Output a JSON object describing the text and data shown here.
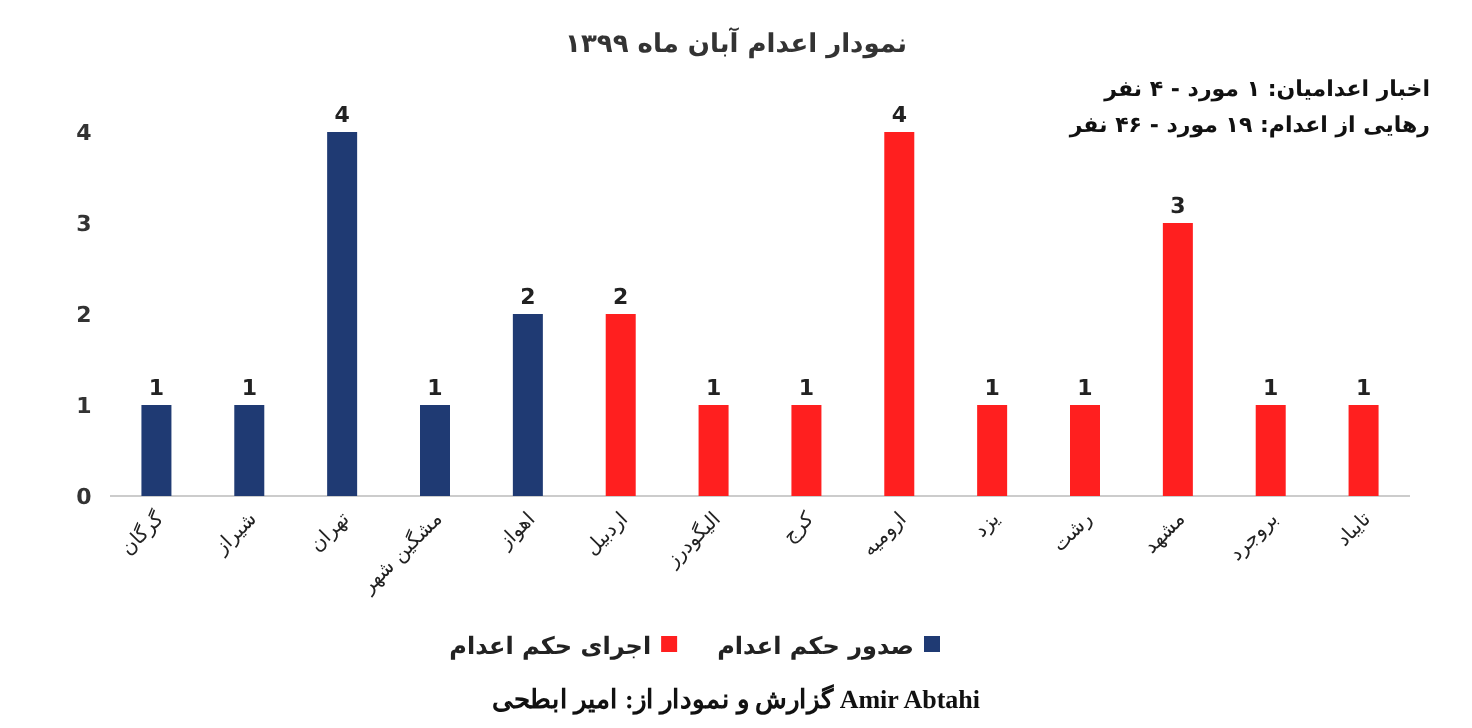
{
  "chart_data": {
    "type": "bar",
    "title": "نمودار اعدام آبان ماه ۱۳۹۹",
    "categories": [
      "گرگان",
      "شیراز",
      "تهران",
      "مشگین شهر",
      "اهواز",
      "اردبیل",
      "الیگودرز",
      "کرج",
      "ارومیه",
      "یزد",
      "رشت",
      "مشهد",
      "بروجرد",
      "تایباد"
    ],
    "series": [
      {
        "name": "صدور حکم اعدام",
        "color": "#1f3a73",
        "values": [
          1,
          1,
          4,
          1,
          2,
          null,
          null,
          null,
          null,
          null,
          null,
          null,
          null,
          null
        ]
      },
      {
        "name": "اجرای حکم اعدام",
        "color": "#ff1f1f",
        "values": [
          null,
          null,
          null,
          null,
          null,
          2,
          1,
          1,
          4,
          1,
          1,
          3,
          1,
          1
        ]
      }
    ],
    "ylim": [
      0,
      4
    ],
    "yticks": [
      0,
      1,
      2,
      3,
      4
    ],
    "data_labels": true,
    "legend": "bottom",
    "grid": false,
    "annotations": [
      "اخبار اعدامیان: ۱ مورد - ۴ نفر",
      "رهایی از اعدام: ۱۹ مورد - ۴۶ نفر",
      "گزارش و نمودار از: امیر ابطحی Amir Abtahi"
    ]
  }
}
